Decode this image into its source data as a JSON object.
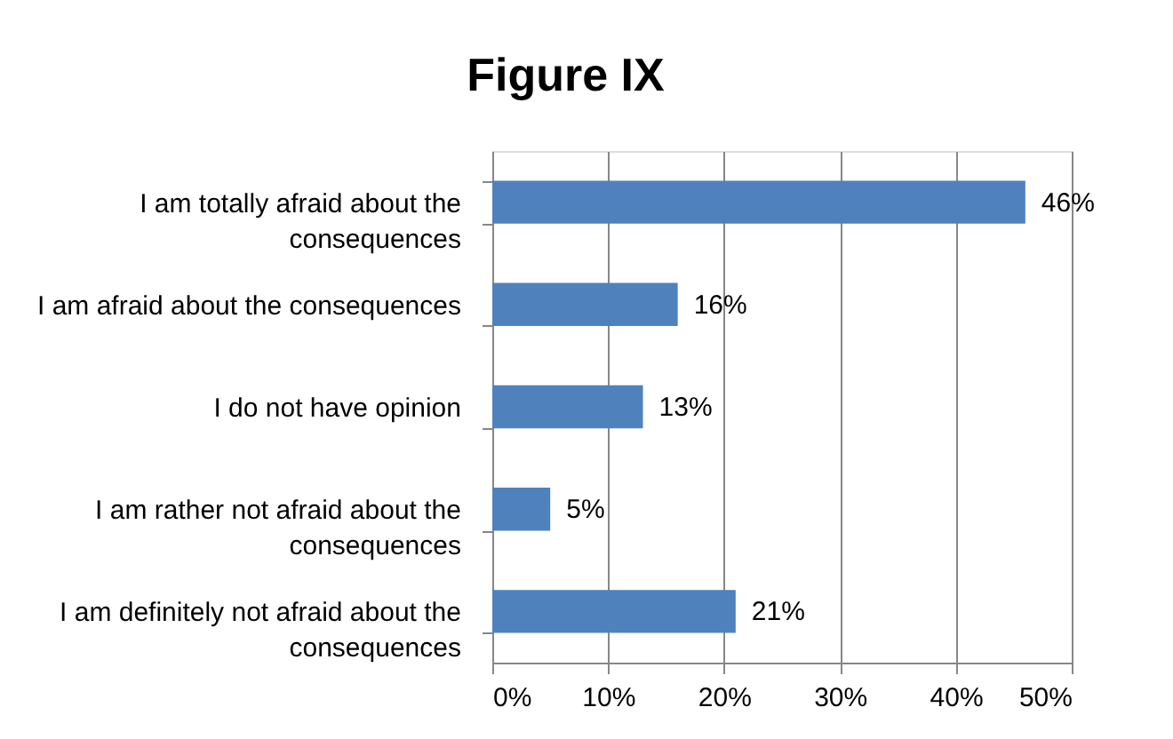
{
  "chart_data": {
    "type": "bar",
    "title": "Figure IX",
    "orientation": "horizontal",
    "categories": [
      "I am totally afraid about the consequences",
      "I am afraid about the consequences",
      "I do not have opinion",
      "I am rather not afraid about the consequences",
      "I am definitely not afraid about the consequences"
    ],
    "values": [
      46,
      16,
      13,
      5,
      21
    ],
    "color": "#4f81bd",
    "value_labels": [
      "46%",
      "16%",
      "13%",
      "5%",
      "21%"
    ],
    "xlim": [
      0,
      50
    ],
    "xticks": [
      {
        "value": 0,
        "label": "0%"
      },
      {
        "value": 10,
        "label": "10%"
      },
      {
        "value": 20,
        "label": "20%"
      },
      {
        "value": 30,
        "label": "30%"
      },
      {
        "value": 40,
        "label": "40%"
      },
      {
        "value": 50,
        "label": "50%"
      }
    ],
    "grid": "x"
  }
}
